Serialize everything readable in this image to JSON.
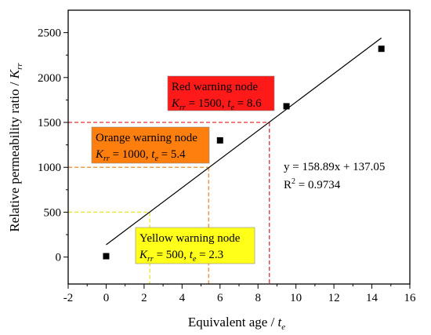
{
  "chart_data": {
    "type": "scatter",
    "title": "",
    "xlabel": "Equivalent age / ",
    "xlabel_var": "t",
    "xlabel_sub": "e",
    "ylabel": "Relative permeability ratio / ",
    "ylabel_var": "K",
    "ylabel_sub": "rr",
    "xlim": [
      -2,
      16
    ],
    "ylim": [
      -300,
      2750
    ],
    "xticks": [
      -2,
      0,
      2,
      4,
      6,
      8,
      10,
      12,
      14,
      16
    ],
    "yticks": [
      0,
      500,
      1000,
      1500,
      2000,
      2500
    ],
    "grid": false,
    "series": [
      {
        "marker": "square",
        "color": "#000000",
        "x": [
          0,
          6,
          9.5,
          14.5
        ],
        "y": [
          10,
          1300,
          1680,
          2320
        ]
      }
    ],
    "fit": {
      "slope": 158.89,
      "intercept": 137.05,
      "x_range": [
        0,
        14.5
      ],
      "equation": "y = 158.89x + 137.05",
      "r2_label": "R",
      "r2_sup": "2",
      "r2_value": " = 0.9734"
    },
    "warnings": [
      {
        "title": "Red warning node",
        "k_var": "K",
        "k_sub": "rr",
        "k_value": " = 1500, ",
        "t_var": "t",
        "t_sub": "e",
        "t_value": " = 8.6",
        "K": 1500,
        "t": 8.6,
        "fill": "#ff1a1a",
        "line": "#e03030"
      },
      {
        "title": "Orange warning node",
        "k_var": "K",
        "k_sub": "rr",
        "k_value": " = 1000, ",
        "t_var": "t",
        "t_sub": "e",
        "t_value": " = 5.4",
        "K": 1000,
        "t": 5.4,
        "fill": "#ff7f0e",
        "line": "#f08a24"
      },
      {
        "title": "Yellow warning node",
        "k_var": "K",
        "k_sub": "rr",
        "k_value": " = 500, ",
        "t_var": "t",
        "t_sub": "e",
        "t_value": " = 2.3",
        "K": 500,
        "t": 2.3,
        "fill": "#ffff1a",
        "line": "#f0e030"
      }
    ]
  }
}
